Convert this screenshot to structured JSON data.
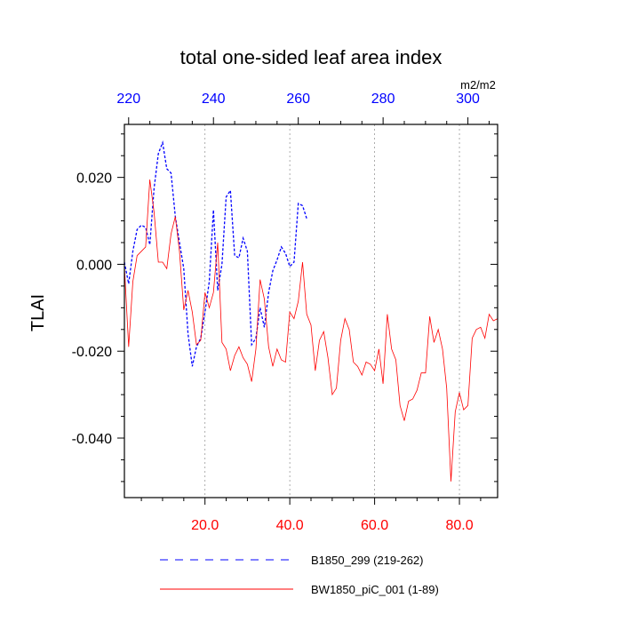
{
  "chart_data": {
    "type": "line",
    "title": "total one-sided leaf area index",
    "ylabel": "TLAI",
    "units": "m2/m2",
    "xlim_bottom": [
      1,
      89
    ],
    "xlim_top": [
      219,
      307
    ],
    "ylim": [
      -0.0537,
      0.0322
    ],
    "bottom_ticks": [
      {
        "value": 20,
        "label": "20.0"
      },
      {
        "value": 40,
        "label": "40.0"
      },
      {
        "value": 60,
        "label": "60.0"
      },
      {
        "value": 80,
        "label": "80.0"
      }
    ],
    "top_ticks": [
      {
        "value": 220,
        "label": "220"
      },
      {
        "value": 240,
        "label": "240"
      },
      {
        "value": 260,
        "label": "260"
      },
      {
        "value": 280,
        "label": "280"
      },
      {
        "value": 300,
        "label": "300"
      }
    ],
    "y_ticks": [
      {
        "value": 0.02,
        "label": "0.020"
      },
      {
        "value": 0.0,
        "label": "0.000"
      },
      {
        "value": -0.02,
        "label": "-0.020"
      },
      {
        "value": -0.04,
        "label": "-0.040"
      }
    ],
    "grid": "vertical dotted at major ticks",
    "legend_placement": "bottom",
    "series": [
      {
        "name": "B1850_299 (219-262)",
        "axis": "top",
        "color": "#0000ff",
        "style": "dashed",
        "x": [
          219,
          220,
          221,
          222,
          223,
          224,
          225,
          226,
          227,
          228,
          229,
          230,
          231,
          232,
          233,
          234,
          235,
          236,
          237,
          238,
          239,
          240,
          241,
          242,
          243,
          244,
          245,
          246,
          247,
          248,
          249,
          250,
          251,
          252,
          253,
          254,
          255,
          256,
          257,
          258,
          259,
          260,
          261,
          262
        ],
        "y": [
          0.0005,
          -0.0045,
          0.003,
          0.008,
          0.009,
          0.0085,
          0.0045,
          0.0175,
          0.0255,
          0.028,
          0.022,
          0.021,
          0.011,
          0.005,
          -0.001,
          -0.016,
          -0.0235,
          -0.019,
          -0.017,
          -0.011,
          -0.004,
          0.0125,
          -0.006,
          0.0,
          0.0155,
          0.017,
          0.002,
          0.0015,
          0.006,
          0.003,
          -0.0185,
          -0.017,
          -0.01,
          -0.0145,
          -0.0065,
          -0.0015,
          0.001,
          0.004,
          0.0025,
          -0.0005,
          0.0005,
          0.014,
          0.0135,
          0.0105
        ]
      },
      {
        "name": "BW1850_piC_001 (1-89)",
        "axis": "bottom",
        "color": "#ff0000",
        "style": "solid",
        "x": [
          1,
          2,
          3,
          4,
          5,
          6,
          7,
          8,
          9,
          10,
          11,
          12,
          13,
          14,
          15,
          16,
          17,
          18,
          19,
          20,
          21,
          22,
          23,
          24,
          25,
          26,
          27,
          28,
          29,
          30,
          31,
          32,
          33,
          34,
          35,
          36,
          37,
          38,
          39,
          40,
          41,
          42,
          43,
          44,
          45,
          46,
          47,
          48,
          49,
          50,
          51,
          52,
          53,
          54,
          55,
          56,
          57,
          58,
          59,
          60,
          61,
          62,
          63,
          64,
          65,
          66,
          67,
          68,
          69,
          70,
          71,
          72,
          73,
          74,
          75,
          76,
          77,
          78,
          79,
          80,
          81,
          82,
          83,
          84,
          85,
          86,
          87,
          88,
          89
        ],
        "y": [
          -0.0005,
          -0.019,
          -0.004,
          0.002,
          0.003,
          0.004,
          0.0195,
          0.012,
          0.0005,
          0.0005,
          -0.001,
          0.007,
          0.011,
          0.003,
          -0.0105,
          -0.006,
          -0.011,
          -0.0185,
          -0.0175,
          -0.0065,
          -0.01,
          -0.0065,
          0.005,
          -0.018,
          -0.0195,
          -0.0245,
          -0.021,
          -0.019,
          -0.0215,
          -0.023,
          -0.027,
          -0.0195,
          -0.0035,
          -0.008,
          -0.019,
          -0.0235,
          -0.0195,
          -0.022,
          -0.0225,
          -0.011,
          -0.0125,
          -0.0085,
          0.0005,
          -0.0115,
          -0.014,
          -0.0245,
          -0.0175,
          -0.0155,
          -0.0215,
          -0.03,
          -0.0285,
          -0.0175,
          -0.0125,
          -0.015,
          -0.0225,
          -0.0235,
          -0.0255,
          -0.0225,
          -0.023,
          -0.0245,
          -0.0195,
          -0.0275,
          -0.0115,
          -0.0195,
          -0.022,
          -0.0325,
          -0.036,
          -0.0315,
          -0.031,
          -0.029,
          -0.025,
          -0.025,
          -0.012,
          -0.018,
          -0.015,
          -0.0195,
          -0.0285,
          -0.05,
          -0.034,
          -0.0295,
          -0.0335,
          -0.0325,
          -0.017,
          -0.015,
          -0.0145,
          -0.017,
          -0.0115,
          -0.013,
          -0.0125
        ]
      }
    ]
  }
}
